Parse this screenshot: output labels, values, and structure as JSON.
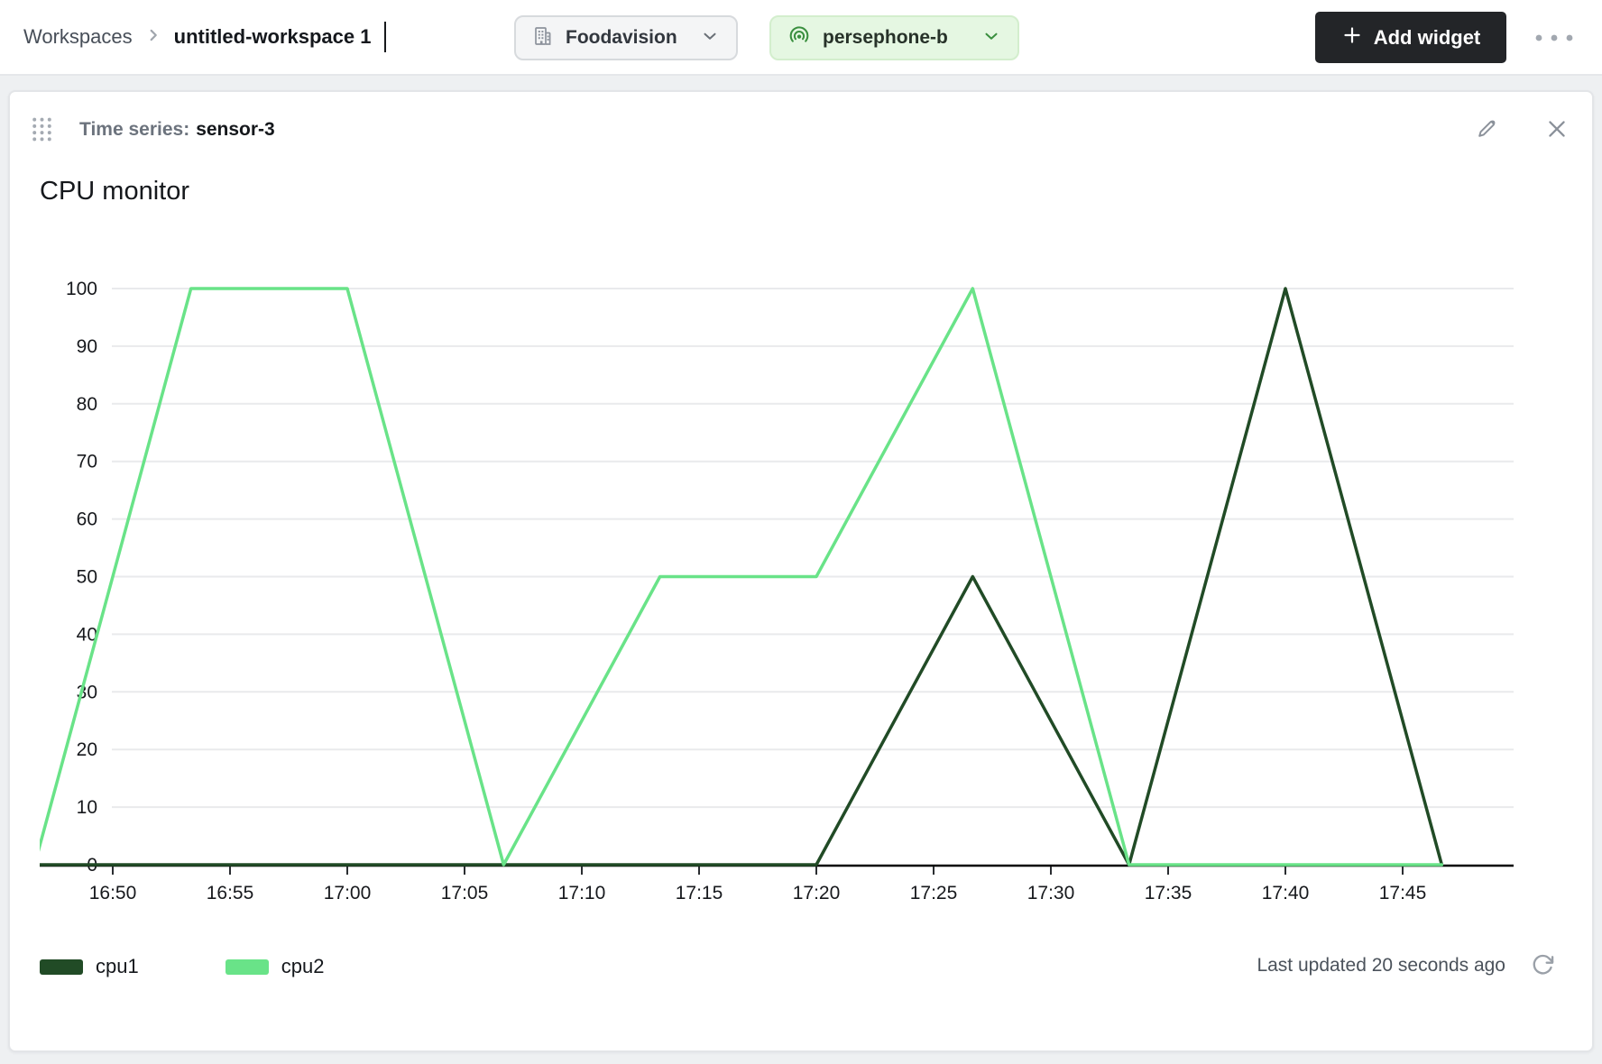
{
  "topbar": {
    "breadcrumb": {
      "root": "Workspaces",
      "current": "untitled-workspace 1"
    },
    "org_selector": {
      "label": "Foodavision"
    },
    "device_selector": {
      "label": "persephone-b"
    },
    "add_widget": {
      "label": "Add widget",
      "plus_glyph": "+"
    }
  },
  "widget": {
    "type_label": "Time series:",
    "name": "sensor-3",
    "footer": {
      "last_updated": "Last updated 20 seconds ago"
    }
  },
  "icons": {
    "breadcrumb_chevron": "chevron-right-icon",
    "org": "building-icon",
    "device": "broadcast-target-icon",
    "overflow": "ellipsis-icon",
    "drag": "drag-handle-dots-icon",
    "edit": "pencil-icon",
    "close": "x-icon",
    "refresh": "refresh-cw-icon"
  },
  "colors": {
    "cpu1": "#214b26",
    "cpu2": "#69e388",
    "device_green": "#3a8f3f",
    "accent_dark": "#232528"
  },
  "chart_data": {
    "type": "line",
    "title": "CPU monitor",
    "xlabel": "",
    "ylabel": "",
    "ylim": [
      0,
      100
    ],
    "grid": true,
    "legend_position": "bottom-left",
    "x_ticks": [
      "16:50",
      "16:55",
      "17:00",
      "17:05",
      "17:10",
      "17:15",
      "17:20",
      "17:25",
      "17:30",
      "17:35",
      "17:40",
      "17:45"
    ],
    "y_ticks": [
      0,
      10,
      20,
      30,
      40,
      50,
      60,
      70,
      80,
      90,
      100
    ],
    "sample_interval": "6m40s",
    "point_times": [
      "16:46:40",
      "16:53:20",
      "17:00:00",
      "17:06:40",
      "17:13:20",
      "17:20:00",
      "17:26:40",
      "17:33:20",
      "17:40:00",
      "17:46:40"
    ],
    "series": [
      {
        "name": "cpu1",
        "color": "#214b26",
        "values": [
          0,
          0,
          0,
          0,
          0,
          0,
          50,
          0,
          100,
          0
        ]
      },
      {
        "name": "cpu2",
        "color": "#69e388",
        "values": [
          0,
          100,
          100,
          0,
          50,
          50,
          100,
          0,
          0,
          0
        ]
      }
    ]
  }
}
